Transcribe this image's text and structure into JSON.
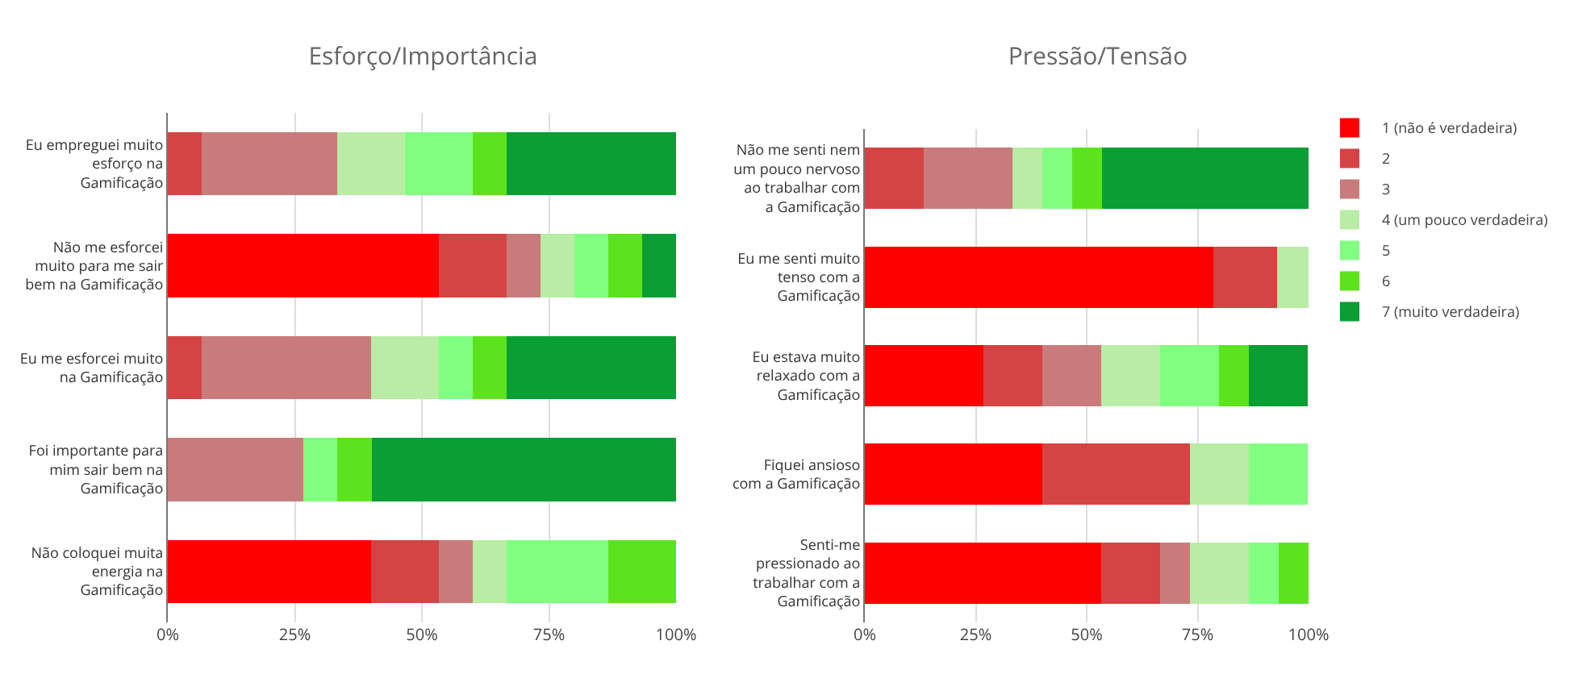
{
  "chart_data": [
    {
      "type": "bar",
      "orientation": "horizontal",
      "stacked": true,
      "title": "Esforço/Importância",
      "categories": [
        "Eu empreguei muito esforço na Gamificação",
        "Não me esforcei muito para me sair bem na Gamificação",
        "Eu me esforcei muito na Gamificação",
        "Foi importante para mim sair bem na Gamificação",
        "Não coloquei muita energia na Gamificação"
      ],
      "series": [
        {
          "color": "#ff0000",
          "values": [
            0,
            53.3,
            0,
            0,
            40
          ]
        },
        {
          "color": "#d44444",
          "values": [
            6.7,
            13.3,
            6.7,
            0,
            13.3
          ]
        },
        {
          "color": "#c97b7b",
          "values": [
            26.7,
            6.7,
            33.3,
            26.7,
            6.7
          ]
        },
        {
          "color": "#b9eca5",
          "values": [
            13.3,
            6.7,
            13.3,
            0,
            6.7
          ]
        },
        {
          "color": "#80ff80",
          "values": [
            13.3,
            6.7,
            6.7,
            6.7,
            20
          ]
        },
        {
          "color": "#5ce31e",
          "values": [
            6.7,
            6.7,
            6.7,
            6.7,
            13.3
          ]
        },
        {
          "color": "#0a9e34",
          "values": [
            33.3,
            6.7,
            33.3,
            60,
            0
          ]
        }
      ],
      "xlim": [
        0,
        100
      ],
      "xticks": [
        {
          "value": 0,
          "label": "0%"
        },
        {
          "value": 25,
          "label": "25%"
        },
        {
          "value": 50,
          "label": "50%"
        },
        {
          "value": 75,
          "label": "75%"
        },
        {
          "value": 100,
          "label": "100%"
        }
      ],
      "grid": "x",
      "legend": false
    },
    {
      "type": "bar",
      "orientation": "horizontal",
      "stacked": true,
      "title": "Pressão/Tensão",
      "categories": [
        "Não me senti nem um pouco nervoso ao trabalhar com a Gamificação",
        "Eu me senti muito tenso com a Gamificação",
        "Eu estava muito relaxado com a Gamificação",
        "Fiquei ansioso com a Gamificação",
        "Senti-me pressionado ao trabalhar com a Gamificação"
      ],
      "series": [
        {
          "name": "1 (não é verdadeira)",
          "color": "#ff0000",
          "values": [
            0,
            78.6,
            26.7,
            40,
            53.3
          ]
        },
        {
          "name": "2",
          "color": "#d44444",
          "values": [
            13.3,
            14.3,
            13.3,
            33.3,
            13.3
          ]
        },
        {
          "name": "3",
          "color": "#c97b7b",
          "values": [
            20,
            0,
            13.3,
            0,
            6.7
          ]
        },
        {
          "name": "4 (um pouco verdadeira)",
          "color": "#b9eca5",
          "values": [
            6.7,
            7.1,
            13.3,
            13.3,
            13.3
          ]
        },
        {
          "name": "5",
          "color": "#80ff80",
          "values": [
            6.7,
            0,
            13.3,
            13.3,
            6.7
          ]
        },
        {
          "name": "6",
          "color": "#5ce31e",
          "values": [
            6.7,
            0,
            6.7,
            0,
            6.7
          ]
        },
        {
          "name": "7 (muito verdadeira)",
          "color": "#0a9e34",
          "values": [
            46.7,
            0,
            13.3,
            0,
            0
          ]
        }
      ],
      "xlim": [
        0,
        100
      ],
      "xticks": [
        {
          "value": 0,
          "label": "0%"
        },
        {
          "value": 25,
          "label": "25%"
        },
        {
          "value": 50,
          "label": "50%"
        },
        {
          "value": 75,
          "label": "75%"
        },
        {
          "value": 100,
          "label": "100%"
        }
      ],
      "grid": "x",
      "legend": "right"
    }
  ]
}
